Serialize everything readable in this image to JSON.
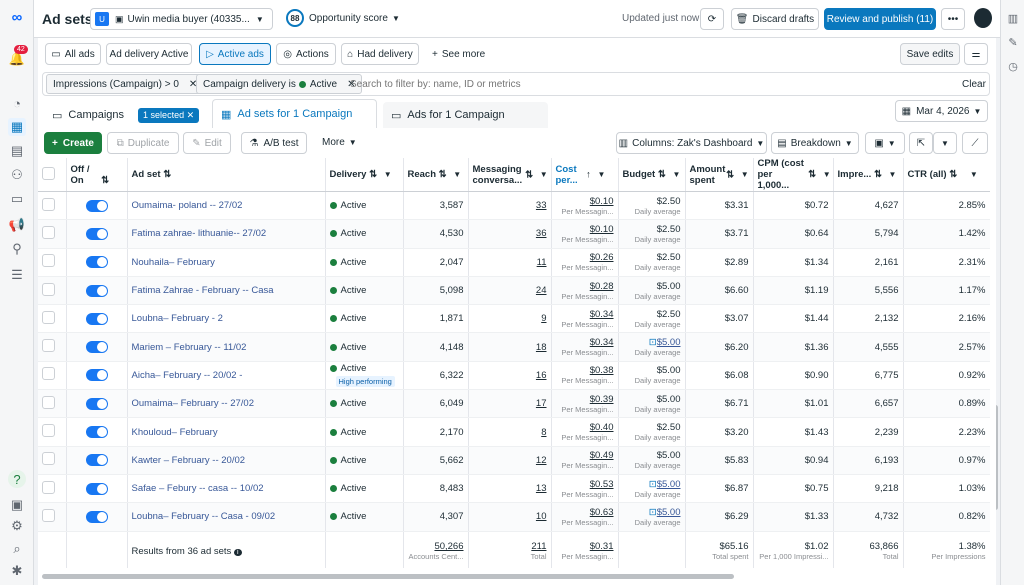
{
  "header": {
    "title": "Ad sets",
    "account_initial": "U",
    "account_name": "Uwin media buyer (40335...",
    "opportunity_score": "88",
    "opportunity_label": "Opportunity score",
    "updated_text": "Updated just now",
    "discard_label": "Discard drafts",
    "review_label": "Review and publish (11)",
    "notifications": "42"
  },
  "filters": {
    "all_ads": "All ads",
    "ad_delivery_active": "Ad delivery Active",
    "active_ads": "Active ads",
    "actions": "Actions",
    "had_delivery": "Had delivery",
    "see_more": "See more",
    "save_edits": "Save edits",
    "chip1": "Impressions (Campaign) > 0",
    "chip2_prefix": "Campaign delivery is",
    "chip2_value": "Active",
    "search_placeholder": "Search to filter by: name, ID or metrics",
    "clear": "Clear"
  },
  "tabs": {
    "campaigns": "Campaigns",
    "selected": "1 selected",
    "adsets": "Ad sets for 1 Campaign",
    "ads": "Ads for 1 Campaign",
    "date": "Mar 4, 2026"
  },
  "toolbar": {
    "create": "Create",
    "duplicate": "Duplicate",
    "edit": "Edit",
    "ab_test": "A/B test",
    "more": "More",
    "columns": "Columns: Zak's Dashboard",
    "breakdown": "Breakdown"
  },
  "columns": {
    "offon": "Off / On",
    "adset": "Ad set",
    "delivery": "Delivery",
    "reach": "Reach",
    "messaging": "Messaging conversa...",
    "cost": "Cost per...",
    "budget": "Budget",
    "amount": "Amount spent",
    "cpm": "CPM (cost per 1,000...",
    "impressions": "Impre...",
    "ctr": "CTR (all)"
  },
  "rows": [
    {
      "name": "Oumaima- poland -- 27/02",
      "delivery": "Active",
      "reach": "3,587",
      "msg": "33",
      "cost": "$0.10",
      "cost_sub": "Per Messagin...",
      "budget": "$2.50",
      "budget_icon": false,
      "budget_sub": "Daily average",
      "amount": "$3.31",
      "cpm": "$0.72",
      "impr": "4,627",
      "ctr": "2.85%",
      "badge": ""
    },
    {
      "name": "Fatima zahrae- lithuanie-- 27/02",
      "delivery": "Active",
      "reach": "4,530",
      "msg": "36",
      "cost": "$0.10",
      "cost_sub": "Per Messagin...",
      "budget": "$2.50",
      "budget_icon": false,
      "budget_sub": "Daily average",
      "amount": "$3.71",
      "cpm": "$0.64",
      "impr": "5,794",
      "ctr": "1.42%",
      "badge": ""
    },
    {
      "name": "Nouhaila– February",
      "delivery": "Active",
      "reach": "2,047",
      "msg": "11",
      "cost": "$0.26",
      "cost_sub": "Per Messagin...",
      "budget": "$2.50",
      "budget_icon": false,
      "budget_sub": "Daily average",
      "amount": "$2.89",
      "cpm": "$1.34",
      "impr": "2,161",
      "ctr": "2.31%",
      "badge": ""
    },
    {
      "name": "Fatima Zahrae - February -- Casa",
      "delivery": "Active",
      "reach": "5,098",
      "msg": "24",
      "cost": "$0.28",
      "cost_sub": "Per Messagin...",
      "budget": "$5.00",
      "budget_icon": false,
      "budget_sub": "Daily average",
      "amount": "$6.60",
      "cpm": "$1.19",
      "impr": "5,556",
      "ctr": "1.17%",
      "badge": ""
    },
    {
      "name": "Loubna– February - 2",
      "delivery": "Active",
      "reach": "1,871",
      "msg": "9",
      "cost": "$0.34",
      "cost_sub": "Per Messagin...",
      "budget": "$2.50",
      "budget_icon": false,
      "budget_sub": "Daily average",
      "amount": "$3.07",
      "cpm": "$1.44",
      "impr": "2,132",
      "ctr": "2.16%",
      "badge": ""
    },
    {
      "name": "Mariem – February -- 11/02",
      "delivery": "Active",
      "reach": "4,148",
      "msg": "18",
      "cost": "$0.34",
      "cost_sub": "Per Messagin...",
      "budget": "$5.00",
      "budget_icon": true,
      "budget_sub": "Daily average",
      "amount": "$6.20",
      "cpm": "$1.36",
      "impr": "4,555",
      "ctr": "2.57%",
      "badge": ""
    },
    {
      "name": "Aicha– February -- 20/02 -",
      "delivery": "Active",
      "reach": "6,322",
      "msg": "16",
      "cost": "$0.38",
      "cost_sub": "Per Messagin...",
      "budget": "$5.00",
      "budget_icon": false,
      "budget_sub": "Daily average",
      "amount": "$6.08",
      "cpm": "$0.90",
      "impr": "6,775",
      "ctr": "0.92%",
      "badge": "High performing"
    },
    {
      "name": "Oumaima– February -- 27/02",
      "delivery": "Active",
      "reach": "6,049",
      "msg": "17",
      "cost": "$0.39",
      "cost_sub": "Per Messagin...",
      "budget": "$5.00",
      "budget_icon": false,
      "budget_sub": "Daily average",
      "amount": "$6.71",
      "cpm": "$1.01",
      "impr": "6,657",
      "ctr": "0.89%",
      "badge": ""
    },
    {
      "name": "Khouloud– February",
      "delivery": "Active",
      "reach": "2,170",
      "msg": "8",
      "cost": "$0.40",
      "cost_sub": "Per Messagin...",
      "budget": "$2.50",
      "budget_icon": false,
      "budget_sub": "Daily average",
      "amount": "$3.20",
      "cpm": "$1.43",
      "impr": "2,239",
      "ctr": "2.23%",
      "badge": ""
    },
    {
      "name": "Kawter – February -- 20/02",
      "delivery": "Active",
      "reach": "5,662",
      "msg": "12",
      "cost": "$0.49",
      "cost_sub": "Per Messagin...",
      "budget": "$5.00",
      "budget_icon": false,
      "budget_sub": "Daily average",
      "amount": "$5.83",
      "cpm": "$0.94",
      "impr": "6,193",
      "ctr": "0.97%",
      "badge": ""
    },
    {
      "name": "Safae – Febury -- casa -- 10/02",
      "delivery": "Active",
      "reach": "8,483",
      "msg": "13",
      "cost": "$0.53",
      "cost_sub": "Per Messagin...",
      "budget": "$5.00",
      "budget_icon": true,
      "budget_sub": "Daily average",
      "amount": "$6.87",
      "cpm": "$0.75",
      "impr": "9,218",
      "ctr": "1.03%",
      "badge": ""
    },
    {
      "name": "Loubna– February -- Casa - 09/02",
      "delivery": "Active",
      "reach": "4,307",
      "msg": "10",
      "cost": "$0.63",
      "cost_sub": "Per Messagin...",
      "budget": "$5.00",
      "budget_icon": true,
      "budget_sub": "Daily average",
      "amount": "$6.29",
      "cpm": "$1.33",
      "impr": "4,732",
      "ctr": "0.82%",
      "badge": ""
    }
  ],
  "footer": {
    "results": "Results from 36 ad sets",
    "reach": "50,266",
    "reach_sub": "Accounts Cent...",
    "msg": "211",
    "msg_sub": "Total",
    "cost": "$0.31",
    "cost_sub": "Per Messagin...",
    "amount": "$65.16",
    "amount_sub": "Total spent",
    "cpm": "$1.02",
    "cpm_sub": "Per 1,000 Impressi...",
    "impr": "63,866",
    "impr_sub": "Total",
    "ctr": "1.38%",
    "ctr_sub": "Per Impressions"
  },
  "colors": {
    "accent": "#0a78be",
    "green": "#1b7f3e",
    "link": "#385898"
  }
}
